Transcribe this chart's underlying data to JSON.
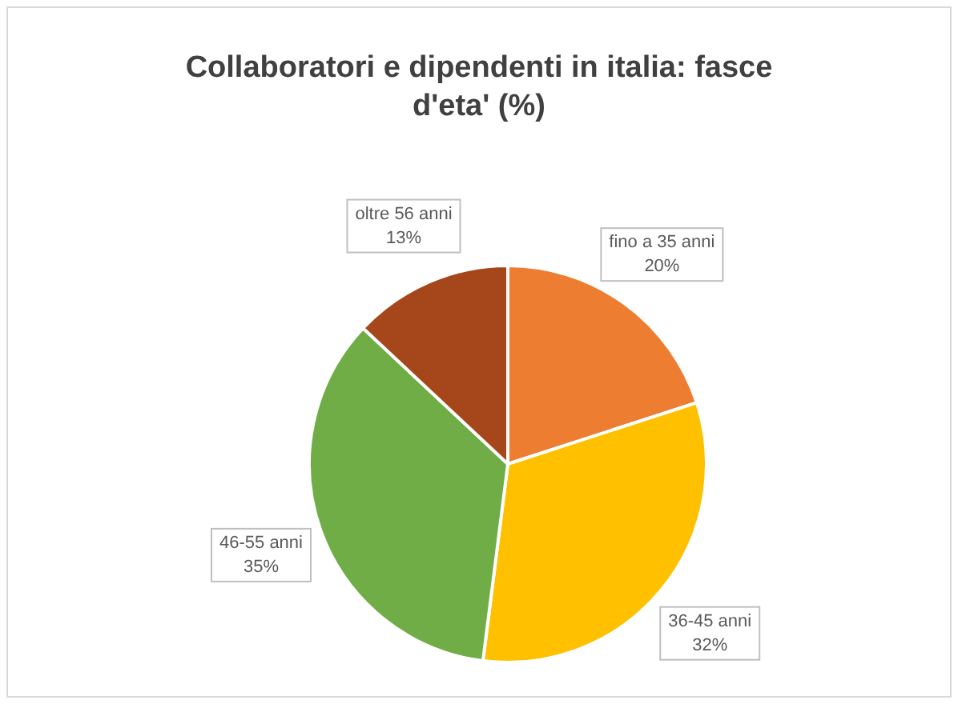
{
  "chart_data": {
    "type": "pie",
    "title": "Collaboratori e dipendenti in italia: fasce d'eta' (%)",
    "categories": [
      "fino a 35 anni",
      "36-45 anni",
      "46-55 anni",
      "oltre 56 anni"
    ],
    "values": [
      20,
      32,
      35,
      13
    ],
    "value_labels": [
      "20%",
      "32%",
      "35%",
      "13%"
    ],
    "colors": [
      "#ed7d31",
      "#ffc000",
      "#70ad47",
      "#a5471b"
    ]
  }
}
